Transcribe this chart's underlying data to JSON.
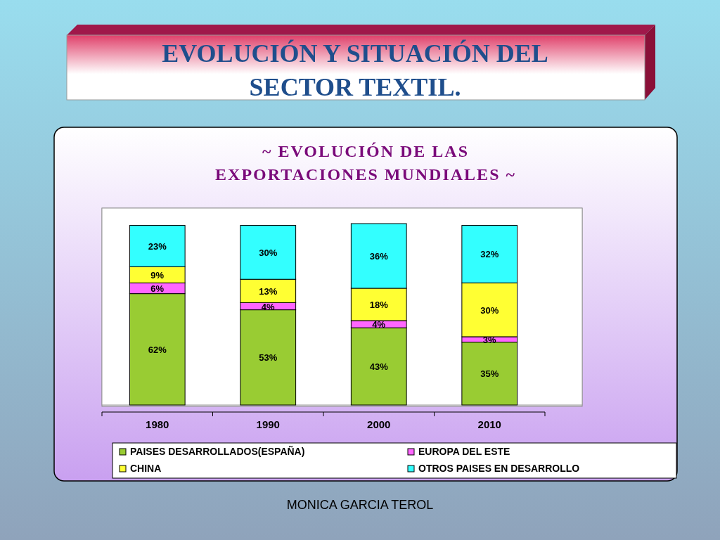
{
  "chart_data": {
    "type": "bar",
    "stacked": true,
    "title": "EVOLUCIÓN Y SITUACIÓN DEL SECTOR TEXTIL.",
    "subtitle": "~ EVOLUCIÓN DE LAS EXPORTACIONES MUNDIALES ~",
    "annotations": [
      "MONICA GARCIA TEROL"
    ],
    "categories": [
      "1980",
      "1990",
      "2000",
      "2010"
    ],
    "legend": "bottom",
    "series": [
      {
        "name": "PAISES DESARROLLADOS(ESPAÑA)",
        "color": "#99cc33",
        "values": [
          62,
          53,
          43,
          35
        ],
        "value_labels": [
          "62%",
          "53%",
          "43%",
          "35%"
        ]
      },
      {
        "name": "EUROPA DEL ESTE",
        "color": "#ff66ff",
        "values": [
          6,
          4,
          4,
          3
        ],
        "value_labels": [
          "6%",
          "4%",
          "4%",
          "3%"
        ]
      },
      {
        "name": "CHINA",
        "color": "#ffff33",
        "values": [
          9,
          13,
          18,
          30
        ],
        "value_labels": [
          "9%",
          "13%",
          "18%",
          "30%"
        ]
      },
      {
        "name": "OTROS PAISES EN DESARROLLO",
        "color": "#33ffff",
        "values": [
          23,
          30,
          36,
          32
        ],
        "value_labels": [
          "23%",
          "30%",
          "36%",
          "32%"
        ]
      }
    ]
  }
}
